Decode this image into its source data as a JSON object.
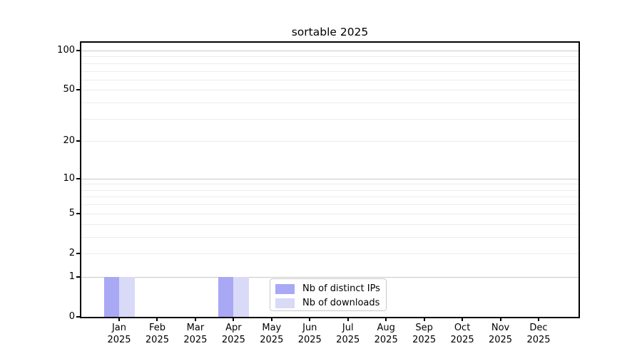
{
  "chart_data": {
    "type": "bar",
    "title": "sortable 2025",
    "categories": [
      "Jan",
      "Feb",
      "Mar",
      "Apr",
      "May",
      "Jun",
      "Jul",
      "Aug",
      "Sep",
      "Oct",
      "Nov",
      "Dec"
    ],
    "category_year_line": "2025",
    "series": [
      {
        "name": "Nb of distinct IPs",
        "color": "#a8a8f5",
        "values": [
          1,
          0,
          0,
          1,
          0,
          0,
          0,
          0,
          0,
          0,
          0,
          0
        ]
      },
      {
        "name": "Nb of downloads",
        "color": "#d9d9f8",
        "values": [
          1,
          0,
          0,
          1,
          0,
          0,
          0,
          0,
          0,
          0,
          0,
          0
        ]
      }
    ],
    "xlabel": "",
    "ylabel": "",
    "y_axis": {
      "scale": "log1p",
      "scale_max": 100,
      "tick_labels": [
        "0",
        "1",
        "2",
        "5",
        "10",
        "20",
        "50",
        "100"
      ],
      "tick_values": [
        0,
        1,
        2,
        5,
        10,
        20,
        50,
        100
      ],
      "major_grid_values": [
        1,
        10,
        100
      ],
      "minor_grid_values": [
        2,
        3,
        4,
        5,
        6,
        7,
        8,
        9,
        20,
        30,
        40,
        50,
        60,
        70,
        80,
        90
      ],
      "ylim": [
        0,
        115
      ]
    },
    "legend_position": "lower center",
    "grid": true,
    "colors": {
      "major_grid": "#c8c8c8",
      "minor_grid": "#ececec",
      "axis": "#000000",
      "text": "#000000",
      "background": "#ffffff"
    }
  }
}
